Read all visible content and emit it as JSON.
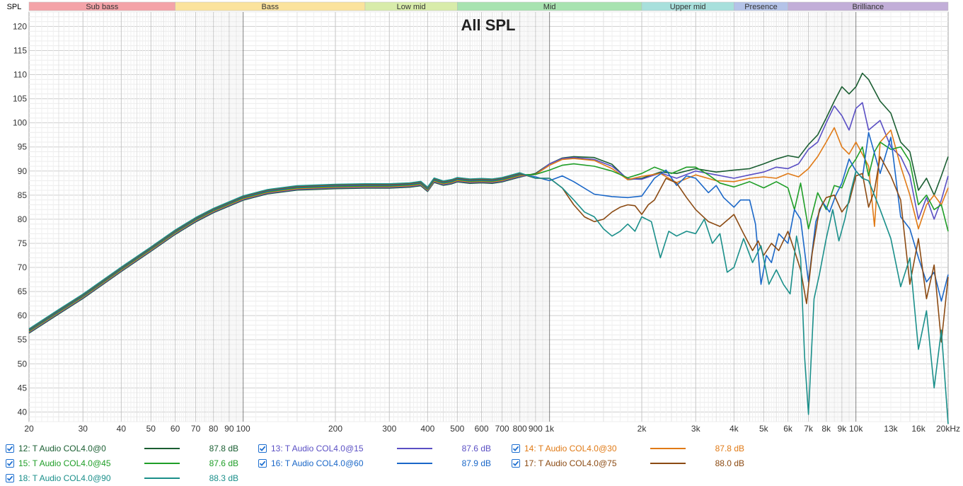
{
  "chart_data": {
    "type": "line",
    "title": "All SPL",
    "ylabel": "SPL",
    "xlabel": "",
    "x_scale": "log",
    "xlim": [
      20,
      20000
    ],
    "ylim": [
      38,
      123
    ],
    "grid": true,
    "y_ticks": [
      40,
      45,
      50,
      55,
      60,
      65,
      70,
      75,
      80,
      85,
      90,
      95,
      100,
      105,
      110,
      115,
      120
    ],
    "x_ticks": [
      {
        "value": 20,
        "label": "20"
      },
      {
        "value": 30,
        "label": "30"
      },
      {
        "value": 40,
        "label": "40"
      },
      {
        "value": 50,
        "label": "50"
      },
      {
        "value": 60,
        "label": "60"
      },
      {
        "value": 70,
        "label": "70"
      },
      {
        "value": 80,
        "label": "80"
      },
      {
        "value": 90,
        "label": "90"
      },
      {
        "value": 100,
        "label": "100"
      },
      {
        "value": 200,
        "label": "200"
      },
      {
        "value": 300,
        "label": "300"
      },
      {
        "value": 400,
        "label": "400"
      },
      {
        "value": 500,
        "label": "500"
      },
      {
        "value": 600,
        "label": "600"
      },
      {
        "value": 700,
        "label": "700"
      },
      {
        "value": 800,
        "label": "800"
      },
      {
        "value": 900,
        "label": "900"
      },
      {
        "value": 1000,
        "label": "1k"
      },
      {
        "value": 2000,
        "label": "2k"
      },
      {
        "value": 3000,
        "label": "3k"
      },
      {
        "value": 4000,
        "label": "4k"
      },
      {
        "value": 5000,
        "label": "5k"
      },
      {
        "value": 6000,
        "label": "6k"
      },
      {
        "value": 7000,
        "label": "7k"
      },
      {
        "value": 8000,
        "label": "8k"
      },
      {
        "value": 9000,
        "label": "9k"
      },
      {
        "value": 10000,
        "label": "10k"
      },
      {
        "value": 13000,
        "label": "13k"
      },
      {
        "value": 16000,
        "label": "16k"
      },
      {
        "value": 20000,
        "label": "20kHz"
      }
    ],
    "bands": [
      {
        "name": "Sub bass",
        "from": 20,
        "to": 60,
        "color": "#f4a3a8"
      },
      {
        "name": "Bass",
        "from": 60,
        "to": 250,
        "color": "#fbe39d"
      },
      {
        "name": "Low mid",
        "from": 250,
        "to": 500,
        "color": "#d8ecaa"
      },
      {
        "name": "Mid",
        "from": 500,
        "to": 2000,
        "color": "#a8e3b0"
      },
      {
        "name": "Upper mid",
        "from": 2000,
        "to": 4000,
        "color": "#a8e0dc"
      },
      {
        "name": "Presence",
        "from": 4000,
        "to": 6000,
        "color": "#b4c3e8"
      },
      {
        "name": "Brilliance",
        "from": 6000,
        "to": 20000,
        "color": "#c2aed8"
      }
    ],
    "common_low": {
      "x": [
        20,
        25,
        30,
        40,
        50,
        60,
        70,
        80,
        100,
        120,
        150,
        200,
        250,
        300,
        350,
        380,
        400,
        420,
        450,
        480,
        500,
        550,
        600,
        650,
        700,
        800
      ],
      "y": [
        56.8,
        60.8,
        64,
        69.6,
        73.8,
        77.3,
        79.9,
        81.8,
        84.4,
        85.7,
        86.5,
        86.8,
        86.9,
        86.9,
        87.1,
        87.4,
        86.2,
        88.1,
        87.5,
        87.8,
        88.2,
        87.9,
        88.0,
        87.9,
        88.2,
        89.2
      ]
    },
    "series": [
      {
        "name": "12: T Audio COL4.0@0",
        "color": "#1a5e32",
        "level": "87.8 dB",
        "x": [
          900,
          1000,
          1100,
          1200,
          1400,
          1600,
          1800,
          2000,
          2300,
          2600,
          3000,
          3500,
          4000,
          4500,
          5000,
          5500,
          6000,
          6500,
          7000,
          7500,
          8000,
          8500,
          9000,
          9500,
          10000,
          10500,
          11000,
          12000,
          13000,
          14000,
          15000,
          16000,
          17000,
          18000,
          19000,
          20000
        ],
        "y": [
          89.5,
          91.5,
          92.7,
          93,
          92.8,
          91.4,
          88.2,
          88.5,
          89.8,
          89.5,
          90.5,
          89.8,
          90.2,
          90.5,
          91.5,
          92.5,
          93.2,
          92.8,
          95.5,
          97.5,
          101,
          104.5,
          107.5,
          106,
          107.5,
          110.3,
          109,
          104.5,
          102,
          96,
          94,
          86,
          88.5,
          85,
          89,
          93
        ]
      },
      {
        "name": "13: T Audio COL4.0@15",
        "color": "#5a4fc4",
        "level": "87.6 dB",
        "x": [
          900,
          1000,
          1100,
          1200,
          1400,
          1600,
          1800,
          2000,
          2300,
          2600,
          3000,
          3500,
          4000,
          4500,
          5000,
          5500,
          6000,
          6500,
          7000,
          7500,
          8000,
          8500,
          9000,
          9500,
          10000,
          10500,
          11000,
          12000,
          13000,
          14000,
          15000,
          16000,
          17000,
          18000,
          19000,
          20000
        ],
        "y": [
          89.3,
          91.5,
          92.6,
          92.8,
          92.4,
          91,
          88.4,
          88.3,
          89.6,
          88.5,
          90,
          89.2,
          88.5,
          89.2,
          89.8,
          90.8,
          90.5,
          91.5,
          94.5,
          96,
          100,
          103.5,
          101.5,
          98.5,
          103,
          104.2,
          98.5,
          100.5,
          95,
          93,
          89,
          80,
          84.5,
          80,
          84,
          89
        ]
      },
      {
        "name": "14: T Audio COL4.0@30",
        "color": "#e07a16",
        "level": "87.8 dB",
        "x": [
          900,
          1000,
          1100,
          1200,
          1400,
          1600,
          1800,
          2000,
          2300,
          2600,
          3000,
          3500,
          4000,
          4500,
          5000,
          5500,
          6000,
          6500,
          7000,
          7500,
          8000,
          8500,
          9000,
          9500,
          10000,
          10500,
          11000,
          11500,
          12000,
          13000,
          14000,
          15000,
          16000,
          17000,
          18000,
          19000,
          20000
        ],
        "y": [
          89.3,
          91.2,
          92.4,
          92.6,
          92.2,
          90.5,
          88.2,
          88.9,
          89.5,
          87.6,
          89.2,
          88,
          87.8,
          88.5,
          88.8,
          88.5,
          89.5,
          88.8,
          90.5,
          93,
          96,
          99,
          95,
          93.5,
          96,
          93.5,
          91,
          78.5,
          96,
          98.5,
          91,
          85,
          78,
          83,
          85,
          83,
          86.5
        ]
      },
      {
        "name": "15: T Audio COL4.0@45",
        "color": "#1f9e27",
        "level": "87.6 dB",
        "x": [
          900,
          1000,
          1100,
          1200,
          1400,
          1600,
          1800,
          2000,
          2200,
          2500,
          2800,
          3000,
          3300,
          3600,
          4000,
          4500,
          5000,
          5500,
          6000,
          6300,
          6600,
          7000,
          7500,
          8000,
          8500,
          9000,
          9500,
          10000,
          10500,
          11000,
          11500,
          12000,
          13000,
          14000,
          15000,
          16000,
          17000,
          18000,
          19000,
          20000
        ],
        "y": [
          89.3,
          90.2,
          91.2,
          91.5,
          91,
          90,
          88.6,
          89.5,
          90.8,
          89.5,
          90.8,
          90.8,
          89.2,
          87.5,
          86.7,
          87.8,
          86.5,
          87.8,
          86.5,
          82,
          87.5,
          78,
          85.5,
          82,
          87,
          86.5,
          90.5,
          92.5,
          95,
          89,
          94,
          96,
          94.5,
          95,
          92,
          83,
          85,
          82,
          83,
          77.5
        ]
      },
      {
        "name": "16: T Audio COL4.0@60",
        "color": "#1a67c8",
        "level": "87.9 dB",
        "x": [
          900,
          1000,
          1100,
          1200,
          1400,
          1600,
          1800,
          2000,
          2200,
          2400,
          2600,
          2800,
          3000,
          3300,
          3500,
          3700,
          4000,
          4200,
          4500,
          4700,
          4900,
          5100,
          5300,
          5600,
          6000,
          6300,
          6600,
          7000,
          7400,
          7800,
          8200,
          8600,
          9000,
          9500,
          10000,
          10500,
          11000,
          12000,
          13000,
          14000,
          15000,
          16000,
          17000,
          18000,
          19000,
          20000
        ],
        "y": [
          88.8,
          88,
          89,
          87.8,
          85.2,
          84.7,
          84.5,
          84.8,
          88.5,
          90.2,
          87,
          89,
          88.5,
          85.5,
          87,
          84.5,
          82.5,
          84,
          84,
          79,
          66.5,
          72.5,
          71,
          77,
          75,
          82,
          80,
          67,
          79.5,
          83.5,
          81.5,
          85,
          87.5,
          92.5,
          90,
          88.5,
          98,
          89.5,
          97,
          80.5,
          78,
          72,
          67,
          69,
          63,
          68.5
        ]
      },
      {
        "name": "17: T Audio COL4.0@75",
        "color": "#8b4a12",
        "level": "88.0 dB",
        "x": [
          900,
          1000,
          1100,
          1200,
          1300,
          1400,
          1500,
          1600,
          1700,
          1800,
          1900,
          2000,
          2100,
          2200,
          2400,
          2600,
          2800,
          3000,
          3300,
          3600,
          4000,
          4300,
          4600,
          4800,
          5000,
          5300,
          5600,
          6000,
          6300,
          6600,
          6900,
          7200,
          7600,
          8000,
          8500,
          9000,
          9500,
          10000,
          10500,
          11000,
          11500,
          12000,
          13000,
          14000,
          15000,
          16000,
          17000,
          18000,
          19000,
          20000
        ],
        "y": [
          88.5,
          88.5,
          86.5,
          83,
          80.5,
          79.5,
          80,
          81.5,
          82.5,
          83,
          82.8,
          81,
          83,
          84,
          88.5,
          87.5,
          84.5,
          82,
          79.5,
          78.5,
          81,
          77,
          73.5,
          75.5,
          72.5,
          75,
          73.5,
          77.5,
          73.5,
          69.5,
          62.5,
          73,
          82,
          84.5,
          85,
          81.5,
          83.5,
          89,
          89.5,
          82.5,
          86,
          93,
          89,
          84,
          66.5,
          76,
          63.5,
          70.5,
          54.5,
          68
        ]
      },
      {
        "name": "18: T Audio COL4.0@90",
        "color": "#1a8f8a",
        "level": "88.3 dB",
        "x": [
          900,
          1000,
          1100,
          1200,
          1300,
          1400,
          1500,
          1600,
          1700,
          1800,
          1900,
          2000,
          2150,
          2300,
          2450,
          2600,
          2800,
          3000,
          3200,
          3400,
          3600,
          3800,
          4000,
          4300,
          4600,
          4900,
          5200,
          5500,
          5800,
          6100,
          6400,
          6600,
          6800,
          7000,
          7300,
          7600,
          8000,
          8400,
          8800,
          9200,
          9600,
          10000,
          10500,
          11000,
          12000,
          13000,
          14000,
          15000,
          16000,
          17000,
          18000,
          19000,
          20000
        ],
        "y": [
          88.5,
          88.5,
          86.5,
          84,
          81.5,
          80.5,
          78,
          76.5,
          77.5,
          79,
          77.5,
          80.5,
          79.5,
          72,
          77.5,
          76.5,
          77.5,
          77,
          80,
          75,
          77,
          69,
          70,
          76,
          71,
          74.5,
          66.5,
          69.5,
          66.5,
          64.5,
          76.5,
          72,
          51.5,
          39.5,
          63.5,
          68.5,
          76,
          82,
          75.5,
          80,
          85.5,
          90,
          88.5,
          88,
          82,
          76,
          66,
          72,
          53,
          61,
          45,
          57,
          37.5
        ]
      }
    ]
  }
}
